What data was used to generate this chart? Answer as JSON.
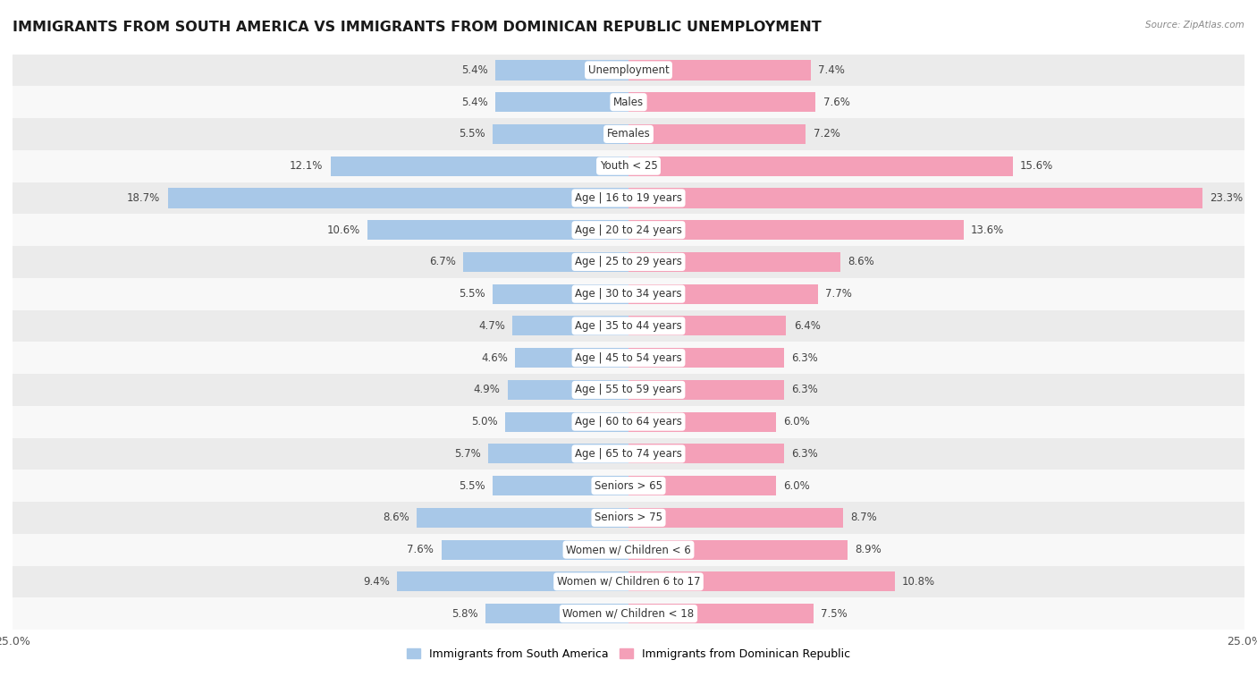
{
  "title": "IMMIGRANTS FROM SOUTH AMERICA VS IMMIGRANTS FROM DOMINICAN REPUBLIC UNEMPLOYMENT",
  "source": "Source: ZipAtlas.com",
  "categories": [
    "Unemployment",
    "Males",
    "Females",
    "Youth < 25",
    "Age | 16 to 19 years",
    "Age | 20 to 24 years",
    "Age | 25 to 29 years",
    "Age | 30 to 34 years",
    "Age | 35 to 44 years",
    "Age | 45 to 54 years",
    "Age | 55 to 59 years",
    "Age | 60 to 64 years",
    "Age | 65 to 74 years",
    "Seniors > 65",
    "Seniors > 75",
    "Women w/ Children < 6",
    "Women w/ Children 6 to 17",
    "Women w/ Children < 18"
  ],
  "south_america": [
    5.4,
    5.4,
    5.5,
    12.1,
    18.7,
    10.6,
    6.7,
    5.5,
    4.7,
    4.6,
    4.9,
    5.0,
    5.7,
    5.5,
    8.6,
    7.6,
    9.4,
    5.8
  ],
  "dominican": [
    7.4,
    7.6,
    7.2,
    15.6,
    23.3,
    13.6,
    8.6,
    7.7,
    6.4,
    6.3,
    6.3,
    6.0,
    6.3,
    6.0,
    8.7,
    8.9,
    10.8,
    7.5
  ],
  "color_sa": "#a8c8e8",
  "color_dr": "#f4a0b8",
  "color_sa_dark": "#7bafd4",
  "color_dr_dark": "#f07090",
  "bg_odd": "#ebebeb",
  "bg_even": "#f8f8f8",
  "xlim": 25.0,
  "bar_height": 0.62,
  "title_fontsize": 11.5,
  "label_fontsize": 8.5,
  "value_fontsize": 8.5
}
